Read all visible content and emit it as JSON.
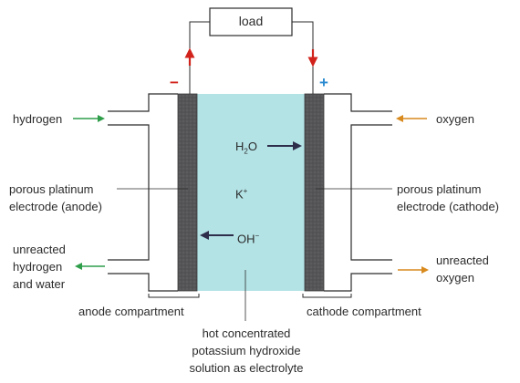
{
  "load": "load",
  "anode_sign": "−",
  "cathode_sign": "+",
  "left_labels": {
    "hydrogen": "hydrogen",
    "anode_electrode_1": "porous platinum",
    "anode_electrode_2": "electrode (anode)",
    "unreacted_1": "unreacted",
    "unreacted_2": "hydrogen",
    "unreacted_3": "and water"
  },
  "right_labels": {
    "oxygen": "oxygen",
    "cathode_electrode_1": "porous platinum",
    "cathode_electrode_2": "electrode (cathode)",
    "unreacted_1": "unreacted",
    "unreacted_2": "oxygen"
  },
  "compartments": {
    "anode": "anode compartment",
    "cathode": "cathode compartment"
  },
  "electrolyte": {
    "line1": "hot concentrated",
    "line2": "potassium hydroxide",
    "line3": "solution as electrolyte"
  },
  "species": {
    "water_main": "H",
    "water_sub": "2",
    "water_tail": "O",
    "potassium_main": "K",
    "potassium_sup": "+",
    "hydroxide_main": "OH",
    "hydroxide_sup": "−"
  },
  "colors": {
    "electrolyte": "#b4e3e6",
    "electrode": "#555557",
    "wire_arrow": "#d1231b",
    "anode_sign": "#d1231b",
    "cathode_sign": "#2a8ad0",
    "hydrogen_arrow": "#2f9e4a",
    "oxygen_arrow": "#d98a1e",
    "ion_arrow": "#2e2d4a"
  }
}
